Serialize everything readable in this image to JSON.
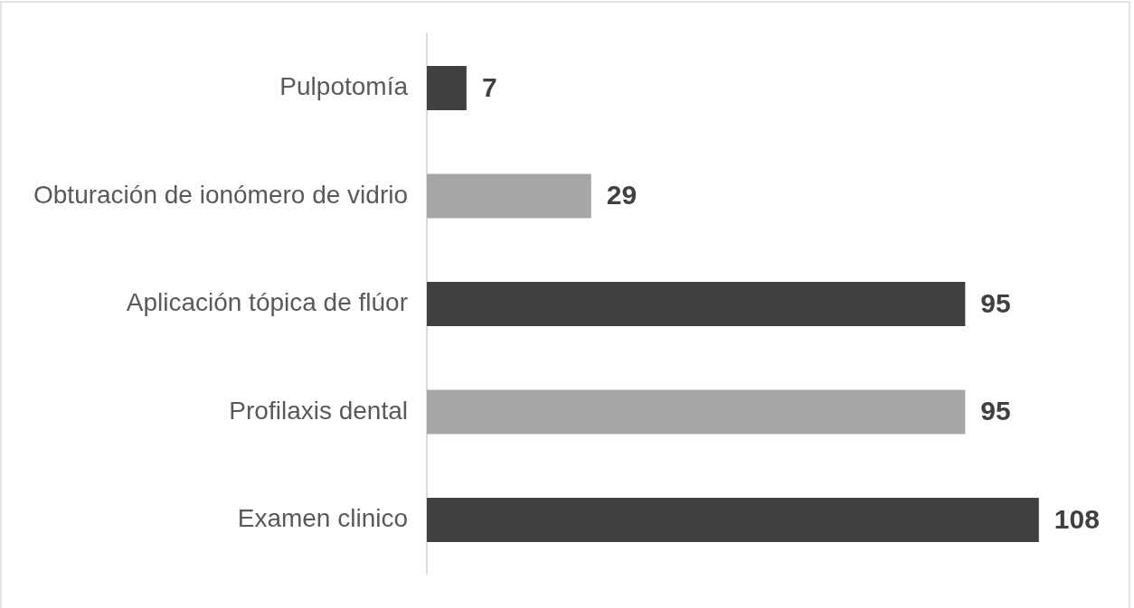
{
  "chart_data": {
    "type": "bar",
    "orientation": "horizontal",
    "categories": [
      "Pulpotomía",
      "Obturación de ionómero de vidrio",
      "Aplicación tópica de flúor",
      "Profilaxis dental",
      "Examen clinico"
    ],
    "values": [
      7,
      29,
      95,
      95,
      108
    ],
    "colors": [
      "#404040",
      "#a6a6a6",
      "#404040",
      "#a6a6a6",
      "#404040"
    ],
    "data_labels": true,
    "tick_labels": "y",
    "grid": false,
    "legend": false
  }
}
